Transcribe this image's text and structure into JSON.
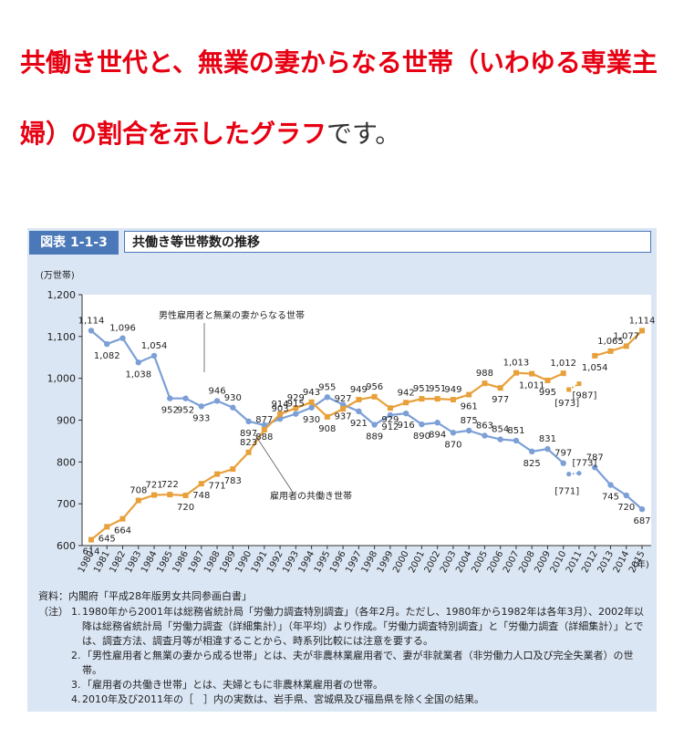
{
  "headline": {
    "highlight": "共働き世代と、無業の妻からなる世帯（いわゆる専業主婦）の割合を示したグラフ",
    "plain": "です。"
  },
  "figure": {
    "label": "図表 1-1-3",
    "title": "共働き等世帯数の推移"
  },
  "chart_data": {
    "type": "line",
    "unit_label": "(万世帯)",
    "x_unit_label": "(年)",
    "ylim": [
      600,
      1200
    ],
    "yticks": [
      "600",
      "700",
      "800",
      "900",
      "1,000",
      "1,100",
      "1,200"
    ],
    "x": [
      1980,
      1981,
      1982,
      1983,
      1984,
      1985,
      1986,
      1987,
      1988,
      1989,
      1990,
      1991,
      1992,
      1993,
      1994,
      1995,
      1996,
      1997,
      1998,
      1999,
      2000,
      2001,
      2002,
      2003,
      2004,
      2005,
      2006,
      2007,
      2008,
      2009,
      2010,
      2011,
      2012,
      2013,
      2014,
      2015
    ],
    "grid": false,
    "series": [
      {
        "name": "男性雇用者と無業の妻からなる世帯",
        "color": "#7b9fd6",
        "values": [
          1114,
          1082,
          1096,
          1038,
          1054,
          952,
          952,
          933,
          946,
          930,
          897,
          888,
          903,
          915,
          930,
          955,
          937,
          921,
          889,
          912,
          916,
          890,
          894,
          870,
          875,
          863,
          854,
          851,
          825,
          831,
          797,
          null,
          787,
          745,
          720,
          687
        ],
        "labels": [
          "1,114",
          "1,082",
          "1,096",
          "1,038",
          "1,054",
          "952",
          "952",
          "933",
          "946",
          "930",
          "897",
          "888",
          "903",
          "915",
          "930",
          "955",
          "937",
          "921",
          "889",
          "912",
          "916",
          "890",
          "894",
          "870",
          "875",
          "863",
          "854",
          "851",
          "825",
          "831",
          "797",
          null,
          "787",
          "745",
          "720",
          "687"
        ],
        "bracket": {
          "values": [
            771,
            773
          ],
          "labels": [
            "[771]",
            "[773]"
          ]
        }
      },
      {
        "name": "雇用者の共働き世帯",
        "color": "#e8a03a",
        "values": [
          614,
          645,
          664,
          708,
          721,
          722,
          720,
          748,
          771,
          783,
          823,
          877,
          914,
          929,
          943,
          908,
          927,
          949,
          956,
          929,
          942,
          951,
          951,
          949,
          961,
          988,
          977,
          1013,
          1011,
          995,
          1012,
          null,
          1054,
          1065,
          1077,
          1114
        ],
        "labels": [
          "614",
          "645",
          "664",
          "708",
          "721",
          "722",
          "720",
          "748",
          "771",
          "783",
          "823",
          "877",
          "914",
          "929",
          "943",
          "908",
          "927",
          "949",
          "956",
          "929",
          "942",
          "951",
          "951",
          "949",
          "961",
          "988",
          "977",
          "1,013",
          "1,011",
          "995",
          "1,012",
          null,
          "1,054",
          "1,065",
          "1,077",
          "1,114"
        ],
        "bracket": {
          "values": [
            973,
            987
          ],
          "labels": [
            "[973]",
            "[987]"
          ]
        }
      }
    ]
  },
  "notes": {
    "source": "資料：内閣府「平成28年版男女共同参画白書」",
    "note_tag": "（注）",
    "items": [
      {
        "num": "1.",
        "text": "1980年から2001年は総務省統計局「労働力調査特別調査」（各年2月。ただし、1980年から1982年は各年3月）、2002年以降は総務省統計局「労働力調査（詳細集計）」（年平均）より作成。「労働力調査特別調査」と「労働力調査（詳細集計）」とでは、調査方法、調査月等が相違することから、時系列比較には注意を要する。"
      },
      {
        "num": "2.",
        "text": "「男性雇用者と無業の妻から成る世帯」とは、夫が非農林業雇用者で、妻が非就業者（非労働力人口及び完全失業者）の世帯。"
      },
      {
        "num": "3.",
        "text": "「雇用者の共働き世帯」とは、夫婦ともに非農林業雇用者の世帯。"
      },
      {
        "num": "4.",
        "text": "2010年及び2011年の［　］内の実数は、岩手県、宮城県及び福島県を除く全国の結果。"
      }
    ]
  }
}
